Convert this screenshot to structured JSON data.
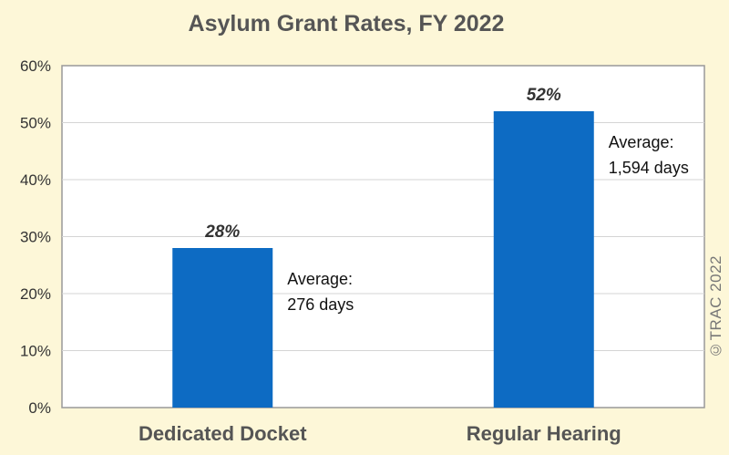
{
  "chart_data": {
    "type": "bar",
    "title": "Asylum Grant Rates, FY 2022",
    "categories": [
      "Dedicated Docket",
      "Regular Hearing"
    ],
    "values": [
      28,
      52
    ],
    "data_labels": [
      "28%",
      "52%"
    ],
    "annotations": [
      [
        "Average:",
        "276 days"
      ],
      [
        "Average:",
        "1,594 days"
      ]
    ],
    "ylim": [
      0,
      60
    ],
    "yticks": [
      "0%",
      "10%",
      "20%",
      "30%",
      "40%",
      "50%",
      "60%"
    ],
    "xlabel": "",
    "ylabel": "",
    "grid": true,
    "bar_color": "#0d6bc3"
  },
  "credit": "©TRAC 2022"
}
